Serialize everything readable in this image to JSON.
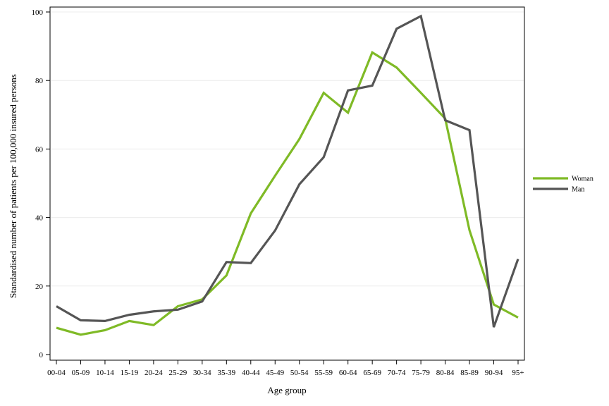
{
  "chart_data": {
    "type": "line",
    "xlabel": "Age group",
    "ylabel": "Standardised number of patients per 100,000 insured persons",
    "categories": [
      "00-04",
      "05-09",
      "10-14",
      "15-19",
      "20-24",
      "25-29",
      "30-34",
      "35-39",
      "40-44",
      "45-49",
      "50-54",
      "55-59",
      "60-64",
      "65-69",
      "70-74",
      "75-79",
      "80-84",
      "85-89",
      "90-94",
      "95+"
    ],
    "yticks": [
      "0",
      "20",
      "40",
      "60",
      "80",
      "100"
    ],
    "ylim": [
      0,
      100
    ],
    "grid": "horizontal",
    "legend": "right",
    "series": [
      {
        "name": "Woman",
        "color": "#7fba26",
        "values": [
          7.8,
          5.8,
          7.1,
          9.8,
          8.6,
          14.1,
          16.1,
          23.1,
          41.2,
          52.2,
          62.9,
          76.4,
          70.6,
          88.2,
          83.8,
          76.4,
          68.9,
          36.3,
          14.6,
          10.8
        ]
      },
      {
        "name": "Man",
        "color": "#555555",
        "values": [
          14.1,
          10.0,
          9.8,
          11.6,
          12.6,
          13.1,
          15.5,
          27.0,
          26.7,
          36.2,
          49.7,
          57.6,
          77.1,
          78.5,
          95.1,
          98.8,
          68.4,
          65.5,
          8.0,
          27.9
        ]
      }
    ]
  }
}
